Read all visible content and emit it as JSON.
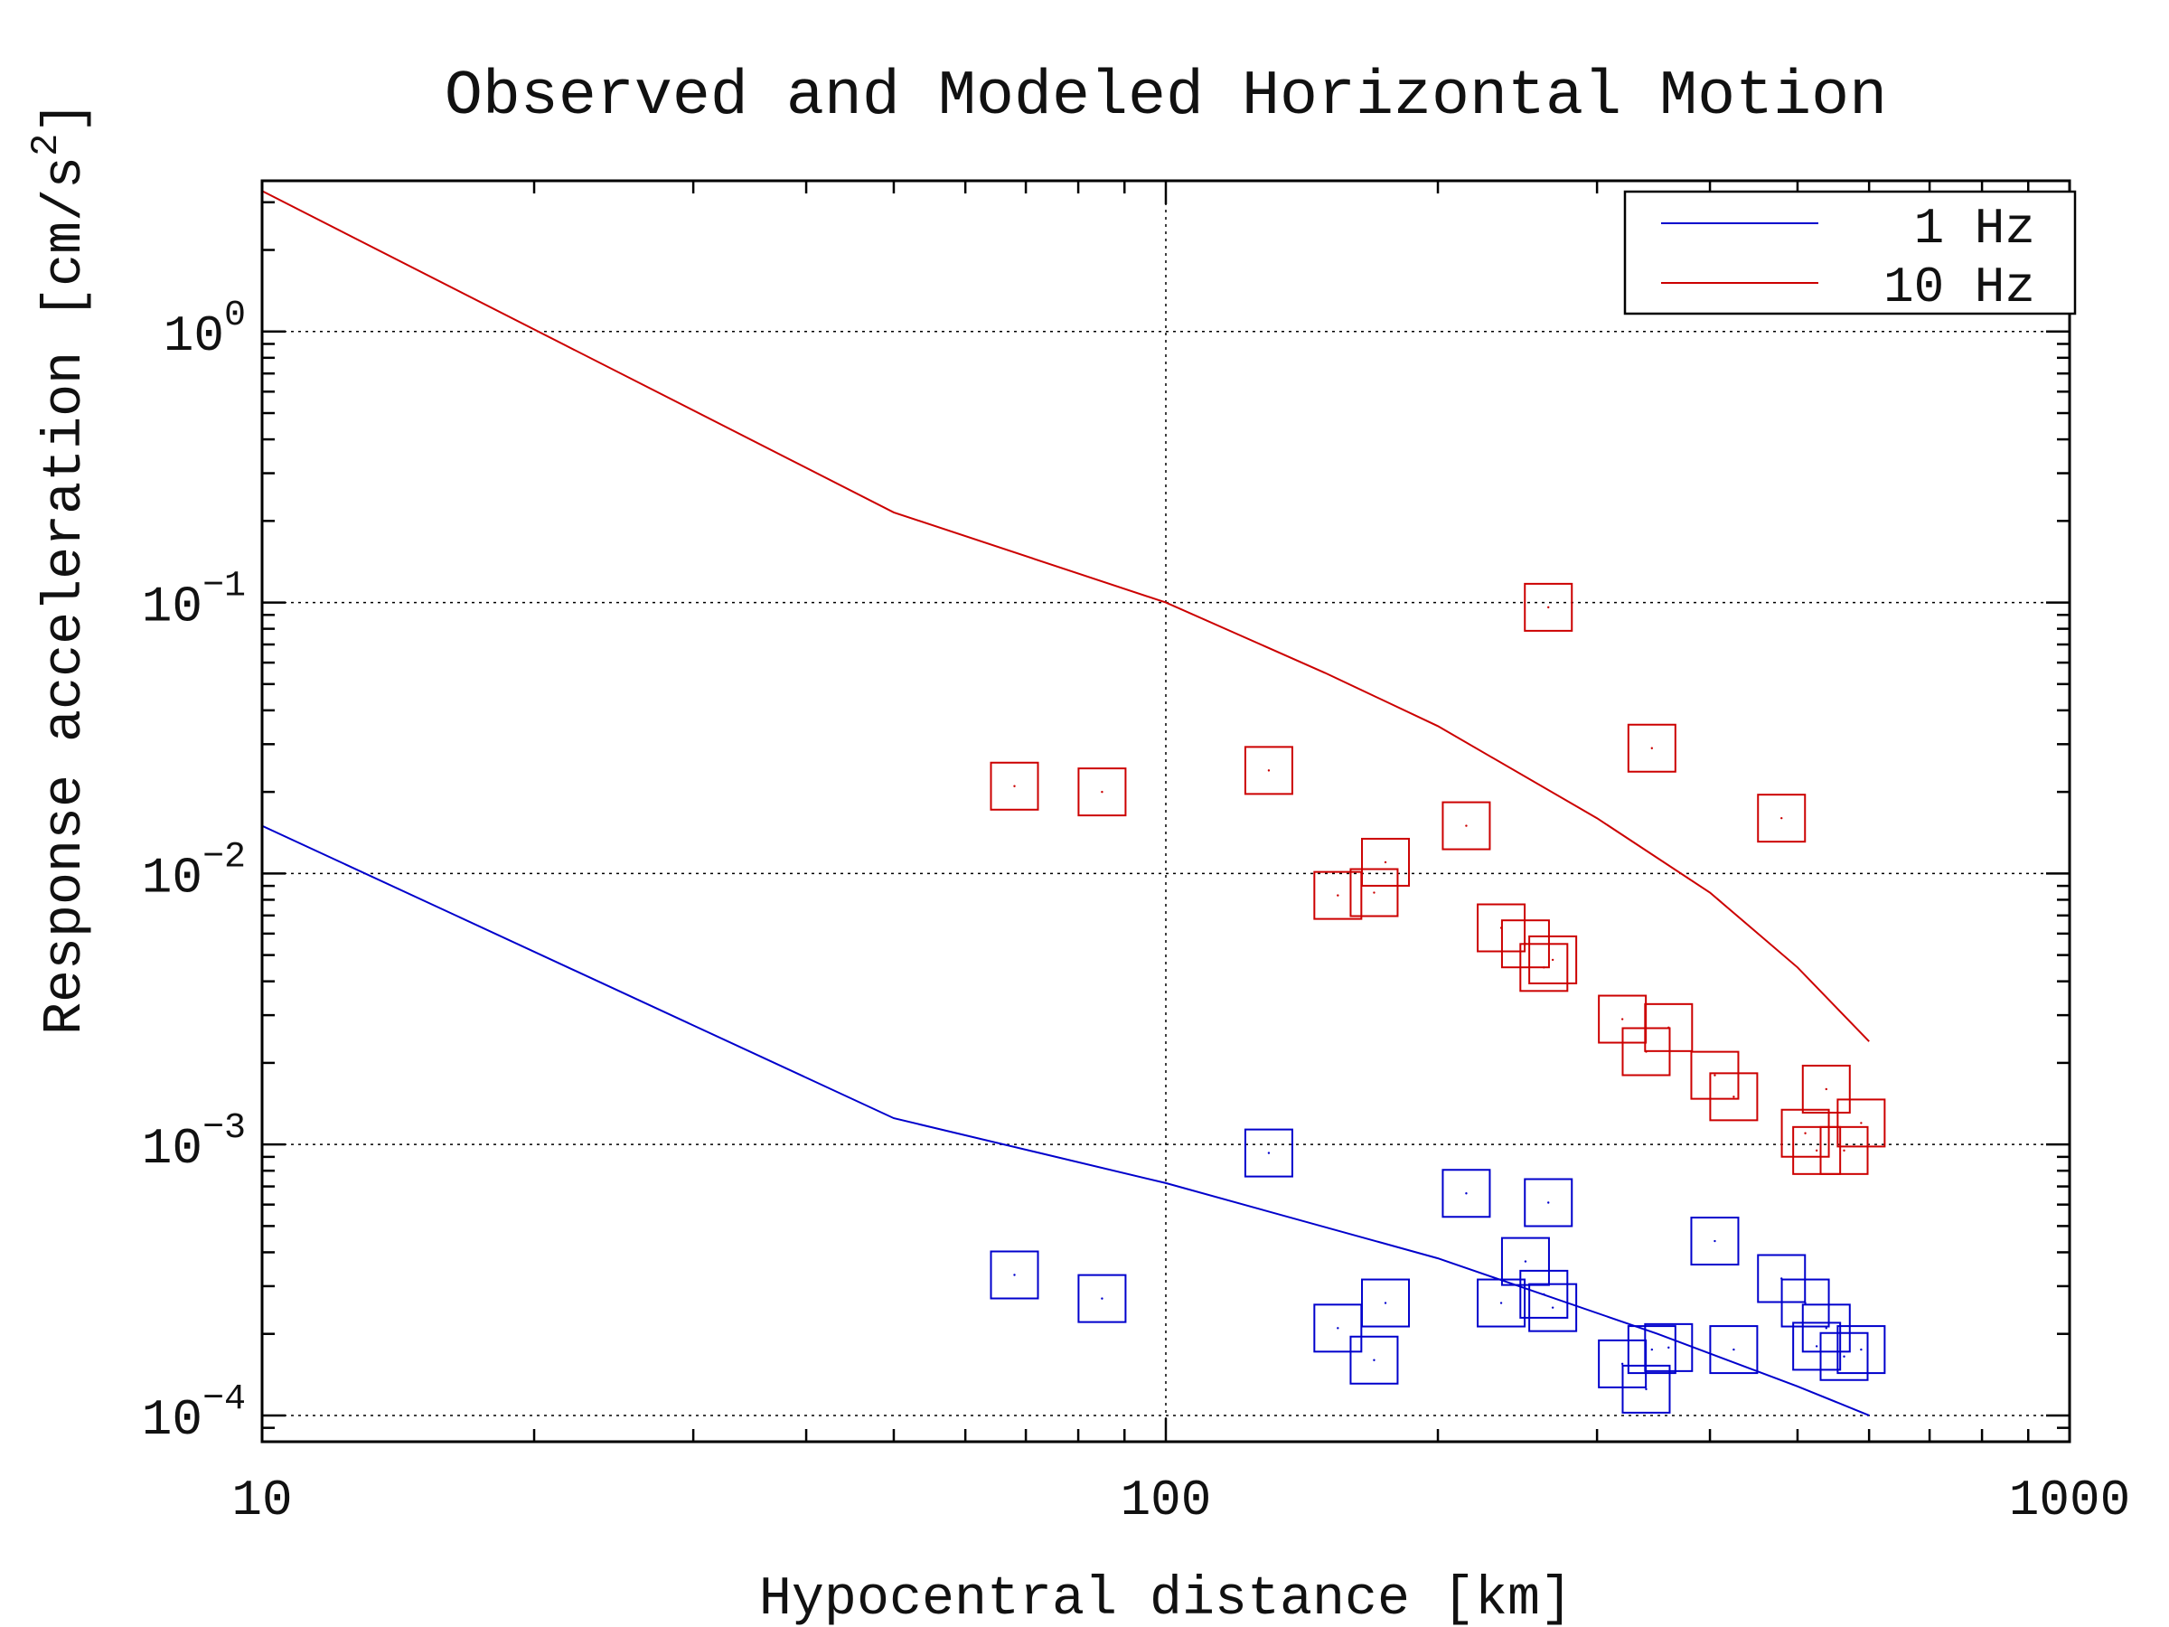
{
  "chart_data": {
    "type": "scatter",
    "title": "Observed and Modeled Horizontal Motion",
    "xlabel": "Hypocentral distance [km]",
    "ylabel_base": "Response acceleration [cm/s",
    "ylabel_sup": "2",
    "ylabel_end": "]",
    "x_scale": "log",
    "y_scale": "log",
    "xlim": [
      10,
      1000
    ],
    "ylim": [
      8e-05,
      3.6
    ],
    "grid": true,
    "legend_position": "top-right",
    "x_ticks": [
      {
        "value": 10,
        "label": "10"
      },
      {
        "value": 100,
        "label": "100"
      },
      {
        "value": 1000,
        "label": "1000"
      }
    ],
    "y_ticks": [
      {
        "value": 1,
        "base": "10",
        "exp": "0"
      },
      {
        "value": 0.1,
        "base": "10",
        "exp": "−1"
      },
      {
        "value": 0.01,
        "base": "10",
        "exp": "−2"
      },
      {
        "value": 0.001,
        "base": "10",
        "exp": "−3"
      },
      {
        "value": 0.0001,
        "base": "10",
        "exp": "−4"
      }
    ],
    "series": [
      {
        "name": "1 Hz",
        "color": "#0000cc",
        "line": [
          [
            10,
            0.015
          ],
          [
            50,
            0.00125
          ],
          [
            100,
            0.00072
          ],
          [
            200,
            0.00038
          ],
          [
            350,
            0.0002
          ],
          [
            500,
            0.000128
          ],
          [
            600,
            0.0001
          ]
        ],
        "points": [
          [
            68,
            0.00033
          ],
          [
            85,
            0.00027
          ],
          [
            130,
            0.00093
          ],
          [
            155,
            0.00021
          ],
          [
            170,
            0.00016
          ],
          [
            175,
            0.00026
          ],
          [
            215,
            0.00066
          ],
          [
            235,
            0.00026
          ],
          [
            250,
            0.00037
          ],
          [
            262,
            0.00028
          ],
          [
            265,
            0.00061
          ],
          [
            268,
            0.00025
          ],
          [
            320,
            0.000155
          ],
          [
            340,
            0.000125
          ],
          [
            345,
            0.000175
          ],
          [
            360,
            0.000178
          ],
          [
            405,
            0.00044
          ],
          [
            425,
            0.000175
          ],
          [
            480,
            0.00032
          ],
          [
            510,
            0.00026
          ],
          [
            525,
            0.00018
          ],
          [
            538,
            0.00021
          ],
          [
            563,
            0.000165
          ],
          [
            588,
            0.000175
          ]
        ]
      },
      {
        "name": "10 Hz",
        "color": "#cc0000",
        "line": [
          [
            10,
            3.3
          ],
          [
            50,
            0.215
          ],
          [
            100,
            0.1
          ],
          [
            150,
            0.055
          ],
          [
            200,
            0.035
          ],
          [
            300,
            0.016
          ],
          [
            400,
            0.0085
          ],
          [
            500,
            0.0045
          ],
          [
            600,
            0.0024
          ]
        ],
        "points": [
          [
            68,
            0.021
          ],
          [
            85,
            0.02
          ],
          [
            130,
            0.024
          ],
          [
            155,
            0.0083
          ],
          [
            170,
            0.0085
          ],
          [
            175,
            0.011
          ],
          [
            215,
            0.015
          ],
          [
            235,
            0.0063
          ],
          [
            250,
            0.0055
          ],
          [
            262,
            0.0045
          ],
          [
            265,
            0.096
          ],
          [
            268,
            0.0048
          ],
          [
            320,
            0.0029
          ],
          [
            340,
            0.0022
          ],
          [
            345,
            0.029
          ],
          [
            360,
            0.0027
          ],
          [
            405,
            0.0018
          ],
          [
            425,
            0.0015
          ],
          [
            480,
            0.016
          ],
          [
            510,
            0.0011
          ],
          [
            525,
            0.00095
          ],
          [
            538,
            0.0016
          ],
          [
            563,
            0.00095
          ],
          [
            588,
            0.0012
          ]
        ]
      }
    ]
  }
}
